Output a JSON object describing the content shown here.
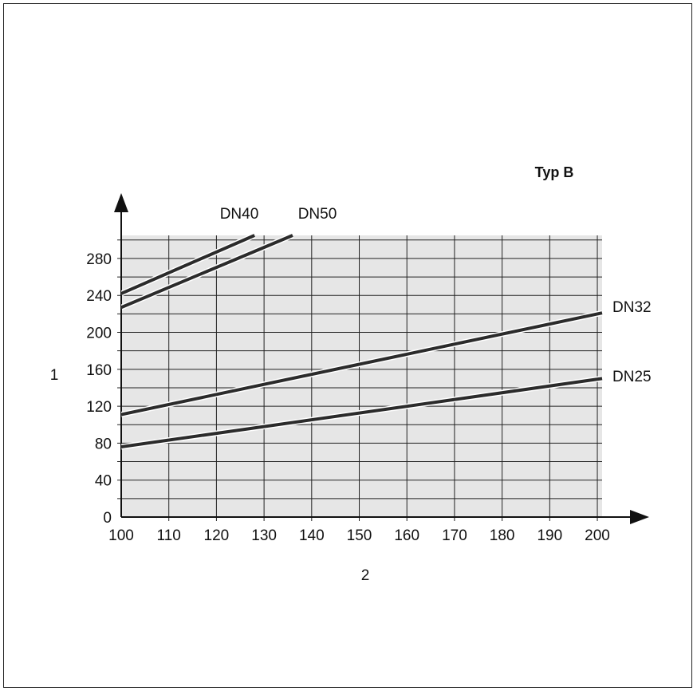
{
  "chart_data": {
    "type": "line",
    "title": "Typ B",
    "xlabel": "2",
    "ylabel": "1",
    "xlim": [
      100,
      201
    ],
    "ylim": [
      0,
      305
    ],
    "x_ticks": [
      100,
      110,
      120,
      130,
      140,
      150,
      160,
      170,
      180,
      190,
      200
    ],
    "y_ticks": [
      0,
      40,
      80,
      120,
      160,
      200,
      240,
      280
    ],
    "grid": true,
    "colors": {
      "plot_bg": "#e6e6e6",
      "line": "#2b2b2b",
      "grid": "#222222"
    },
    "series": [
      {
        "name": "DN40",
        "x": [
          100,
          128
        ],
        "y": [
          242,
          305
        ]
      },
      {
        "name": "DN50",
        "x": [
          100,
          136
        ],
        "y": [
          227,
          305
        ]
      },
      {
        "name": "DN32",
        "x": [
          100,
          201
        ],
        "y": [
          111,
          221
        ]
      },
      {
        "name": "DN25",
        "x": [
          100,
          201
        ],
        "y": [
          76,
          150
        ]
      }
    ]
  }
}
